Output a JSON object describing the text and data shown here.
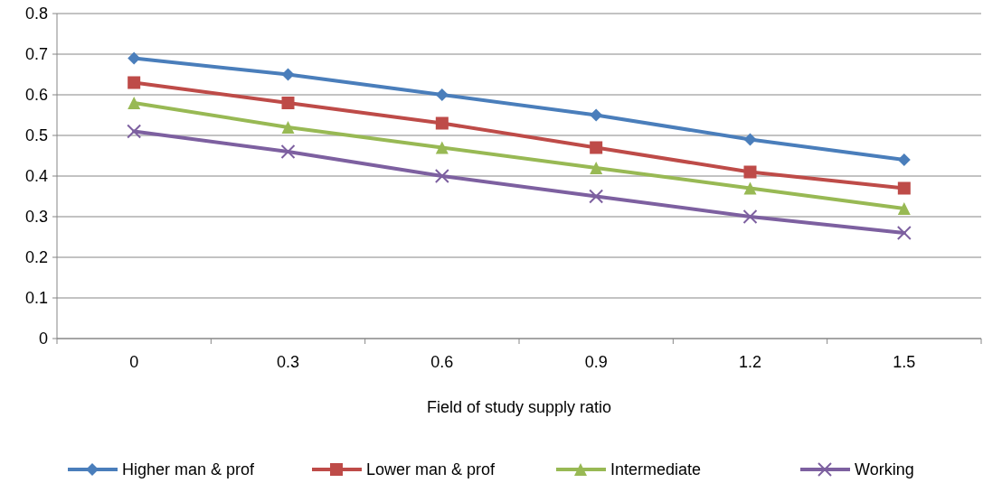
{
  "chart_data": {
    "type": "line",
    "xlabel": "Field of study supply ratio",
    "categories": [
      "0",
      "0.3",
      "0.6",
      "0.9",
      "1.2",
      "1.5"
    ],
    "ylim": [
      0,
      0.8
    ],
    "yticks": [
      0,
      0.1,
      0.2,
      0.3,
      0.4,
      0.5,
      0.6,
      0.7,
      0.8
    ],
    "grid": "y",
    "legend": "bottom",
    "series": [
      {
        "name": "Higher man & prof",
        "color": "#4a7ebb",
        "marker": "diamond",
        "values": [
          0.69,
          0.65,
          0.6,
          0.55,
          0.49,
          0.44
        ]
      },
      {
        "name": "Lower man & prof",
        "color": "#be4b48",
        "marker": "square",
        "values": [
          0.63,
          0.58,
          0.53,
          0.47,
          0.41,
          0.37
        ]
      },
      {
        "name": "Intermediate",
        "color": "#98b954",
        "marker": "triangle",
        "values": [
          0.58,
          0.52,
          0.47,
          0.42,
          0.37,
          0.32
        ]
      },
      {
        "name": "Working",
        "color": "#7d60a0",
        "marker": "cross",
        "values": [
          0.51,
          0.46,
          0.4,
          0.35,
          0.3,
          0.26
        ]
      }
    ]
  }
}
